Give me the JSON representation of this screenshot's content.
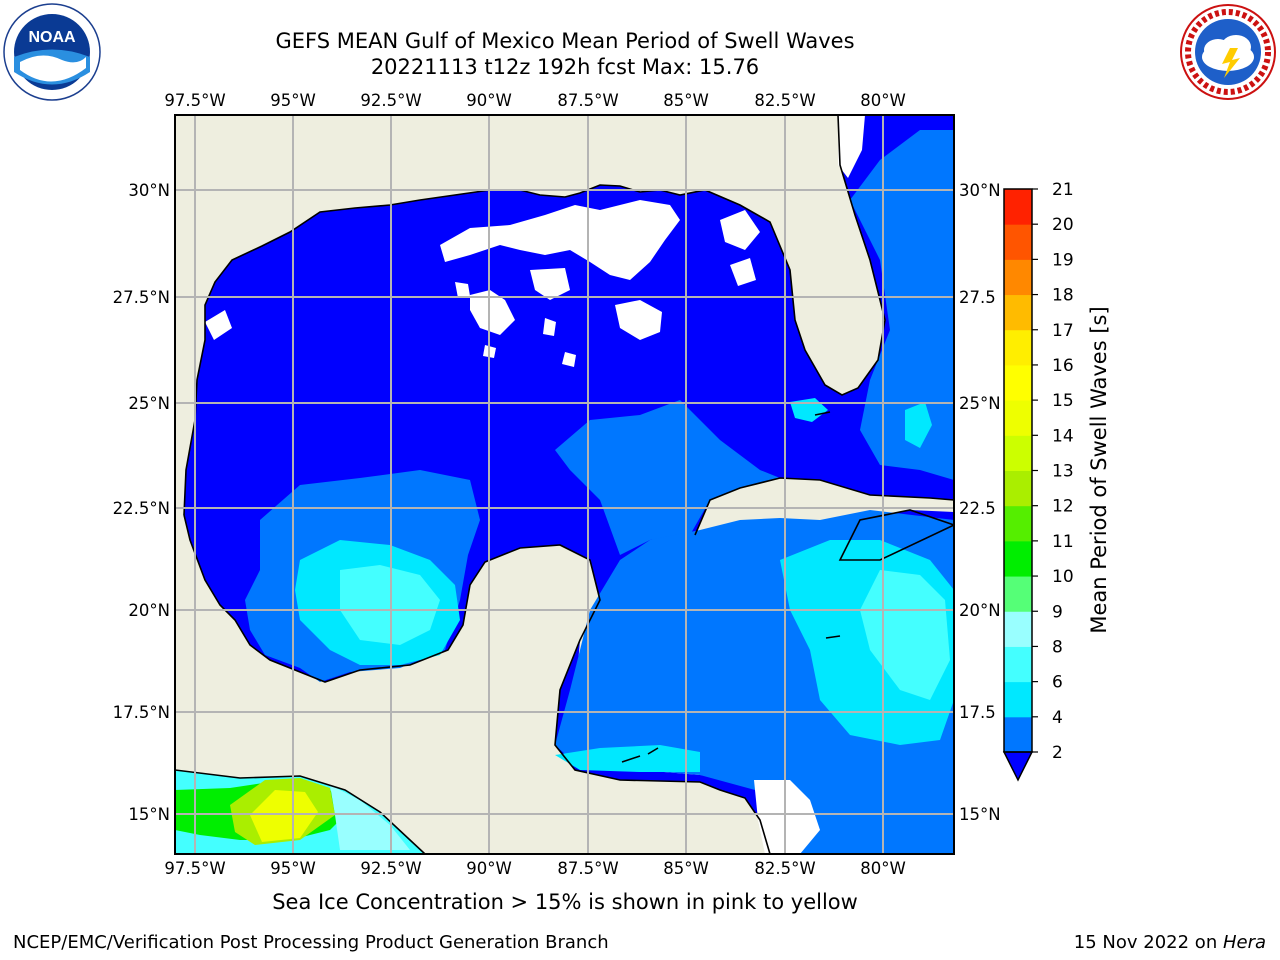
{
  "title_line1": "GEFS MEAN Gulf of Mexico Mean Period of Swell Waves",
  "title_line2": "20221113 t12z 192h fcst   Max: 15.76",
  "caption": "Sea Ice Concentration > 15% is shown in pink to yellow",
  "footer_left": "NCEP/EMC/Verification Post Processing Product Generation Branch",
  "footer_date": "15 Nov 2022 on ",
  "footer_host": "Hera",
  "logos": {
    "left": {
      "name": "noaa-logo",
      "text": "NOAA",
      "ring_text": "NATIONAL OCEANIC AND ATMOSPHERIC ADMINISTRATION · U.S. DEPARTMENT OF COMMERCE"
    },
    "right": {
      "name": "nws-logo",
      "ring_text": "NATIONAL WEATHER SERVICE"
    }
  },
  "map": {
    "lon_labels": [
      "97.5°W",
      "95°W",
      "92.5°W",
      "90°W",
      "87.5°W",
      "85°W",
      "82.5°W",
      "80°W"
    ],
    "lat_labels_left": [
      "30°N",
      "27.5°N",
      "25°N",
      "22.5°N",
      "20°N",
      "17.5°N",
      "15°N"
    ],
    "lat_labels_right": [
      "30°N",
      "27.5",
      "25°N",
      "22.5",
      "20°N",
      "17.5",
      "15°N"
    ],
    "colors": {
      "land": "#eeeedf",
      "ocean_base": "#0000ff",
      "grid": "#b4b4b4",
      "coast": "#000000"
    }
  },
  "colorbar": {
    "label": "Mean Period of Swell Waves [s]",
    "ticks": [
      "2",
      "4",
      "6",
      "8",
      "9",
      "10",
      "11",
      "12",
      "13",
      "14",
      "15",
      "16",
      "17",
      "18",
      "19",
      "20",
      "21"
    ],
    "colors": [
      "#0077ff",
      "#00e8ff",
      "#44ffff",
      "#99ffff",
      "#55ff77",
      "#00ee00",
      "#55ee00",
      "#aaee00",
      "#ccff00",
      "#eeff00",
      "#ffff00",
      "#ffee00",
      "#ffbb00",
      "#ff8800",
      "#ff5500",
      "#ff2200"
    ],
    "extend_color": "#0000ff"
  }
}
